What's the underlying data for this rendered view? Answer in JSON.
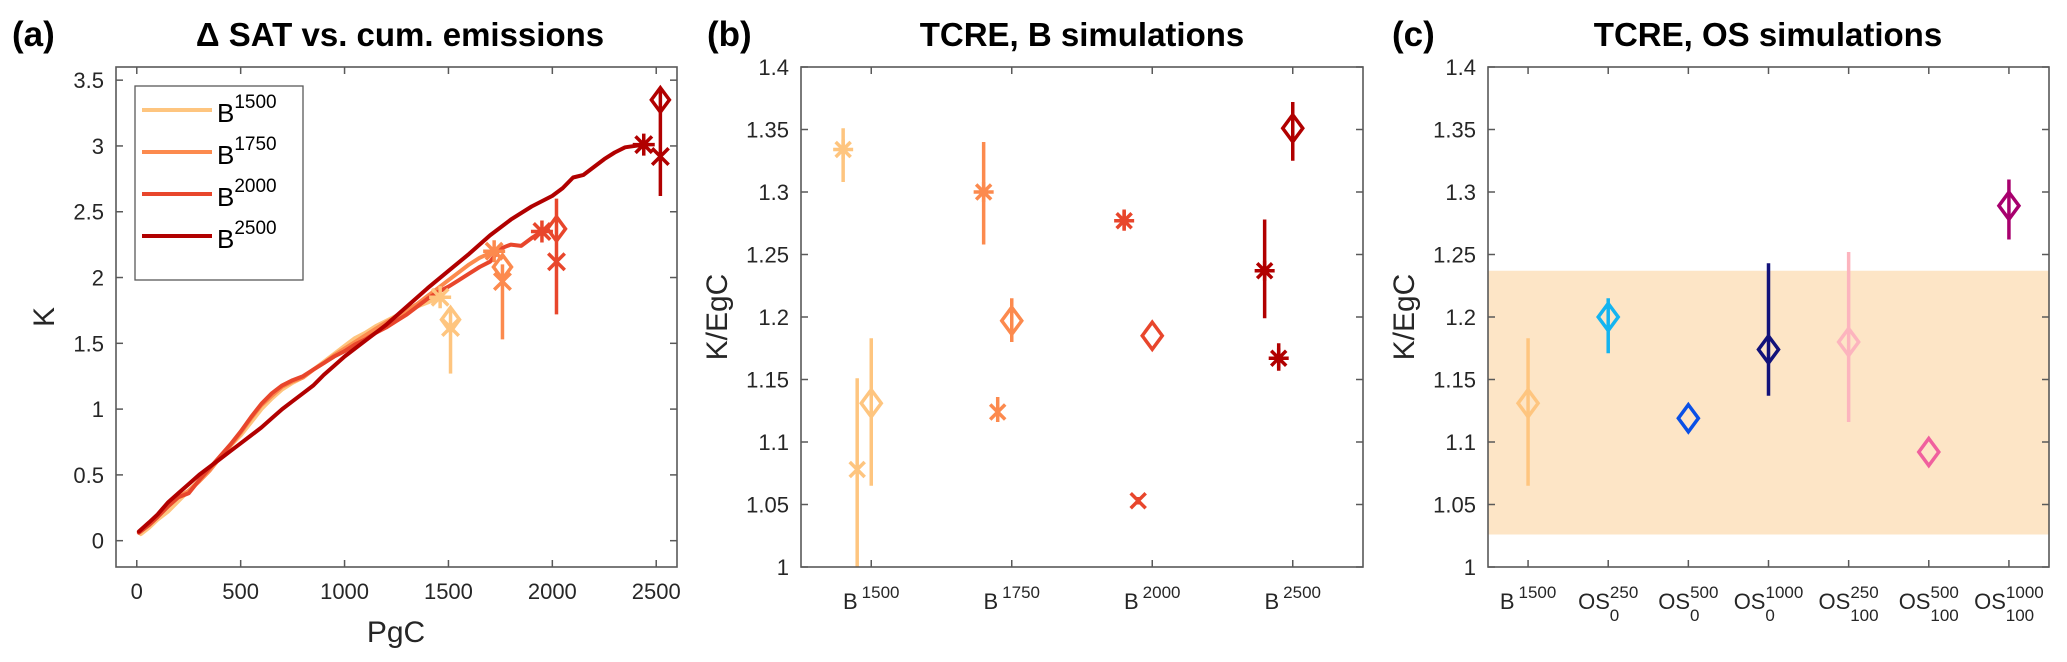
{
  "chart_data": [
    {
      "panel": "(a)",
      "type": "line",
      "title": "Δ SAT vs. cum. emissions",
      "xlabel": "PgC",
      "ylabel": "K",
      "xlim": [
        -100,
        2600
      ],
      "ylim": [
        -0.2,
        3.6
      ],
      "xticks": [
        0,
        500,
        1000,
        1500,
        2000,
        2500
      ],
      "xtick_labels": [
        "0",
        "500",
        "1000",
        "1500",
        "2000",
        "2500"
      ],
      "yticks": [
        0,
        0.5,
        1,
        1.5,
        2,
        2.5,
        3,
        3.5
      ],
      "ytick_labels": [
        "0",
        "0.5",
        "1",
        "1.5",
        "2",
        "2.5",
        "3",
        "3.5"
      ],
      "legend_position": "top-left",
      "series": [
        {
          "name": "B",
          "sup": "1500",
          "color": "#FEC57F",
          "x": [
            20,
            60,
            100,
            150,
            200,
            250,
            300,
            350,
            400,
            450,
            500,
            550,
            600,
            650,
            700,
            750,
            800,
            850,
            900,
            950,
            1000,
            1050,
            1100,
            1150,
            1200,
            1250,
            1300,
            1350,
            1400,
            1460
          ],
          "y": [
            0.05,
            0.1,
            0.16,
            0.22,
            0.3,
            0.38,
            0.46,
            0.54,
            0.63,
            0.72,
            0.8,
            0.9,
            1.0,
            1.08,
            1.15,
            1.2,
            1.24,
            1.3,
            1.36,
            1.42,
            1.48,
            1.54,
            1.58,
            1.63,
            1.67,
            1.71,
            1.75,
            1.78,
            1.81,
            1.85
          ],
          "markers": {
            "asterisk": [
              1460,
              1.85
            ],
            "diamond": [
              1510,
              1.68
            ],
            "cross": [
              1510,
              1.62
            ],
            "errbar": [
              1510,
              1.27,
              1.75
            ]
          }
        },
        {
          "name": "B",
          "sup": "1750",
          "color": "#FC8A4E",
          "x": [
            20,
            60,
            100,
            150,
            200,
            250,
            300,
            350,
            400,
            450,
            500,
            550,
            600,
            650,
            700,
            750,
            800,
            850,
            900,
            950,
            1000,
            1050,
            1100,
            1150,
            1200,
            1250,
            1300,
            1350,
            1400,
            1450,
            1500,
            1550,
            1600,
            1650,
            1720
          ],
          "y": [
            0.08,
            0.13,
            0.19,
            0.26,
            0.33,
            0.38,
            0.45,
            0.53,
            0.63,
            0.72,
            0.82,
            0.93,
            1.03,
            1.1,
            1.17,
            1.21,
            1.24,
            1.3,
            1.35,
            1.41,
            1.46,
            1.51,
            1.56,
            1.61,
            1.66,
            1.7,
            1.75,
            1.8,
            1.86,
            1.92,
            1.98,
            2.04,
            2.1,
            2.15,
            2.2
          ],
          "markers": {
            "asterisk": [
              1720,
              2.2
            ],
            "diamond": [
              1760,
              2.08
            ],
            "cross": [
              1760,
              1.97
            ],
            "errbar": [
              1760,
              1.53,
              2.1
            ]
          }
        },
        {
          "name": "B",
          "sup": "2000",
          "color": "#E8462C",
          "x": [
            10,
            60,
            100,
            150,
            200,
            250,
            300,
            350,
            400,
            450,
            500,
            550,
            600,
            650,
            700,
            750,
            800,
            850,
            900,
            950,
            1000,
            1050,
            1100,
            1150,
            1200,
            1250,
            1300,
            1350,
            1400,
            1450,
            1500,
            1550,
            1600,
            1650,
            1700,
            1750,
            1800,
            1850,
            1900,
            1950
          ],
          "y": [
            0.06,
            0.12,
            0.18,
            0.26,
            0.33,
            0.36,
            0.46,
            0.55,
            0.64,
            0.73,
            0.83,
            0.94,
            1.04,
            1.12,
            1.18,
            1.22,
            1.25,
            1.3,
            1.35,
            1.4,
            1.44,
            1.49,
            1.53,
            1.58,
            1.62,
            1.67,
            1.72,
            1.78,
            1.84,
            1.89,
            1.93,
            1.98,
            2.03,
            2.08,
            2.12,
            2.22,
            2.25,
            2.24,
            2.3,
            2.35
          ],
          "markers": {
            "asterisk": [
              1950,
              2.35
            ],
            "diamond": [
              2020,
              2.37
            ],
            "cross": [
              2020,
              2.12
            ],
            "errbar": [
              2020,
              1.72,
              2.6
            ]
          }
        },
        {
          "name": "B",
          "sup": "2500",
          "color": "#B10000",
          "x": [
            10,
            60,
            100,
            150,
            200,
            250,
            300,
            350,
            400,
            450,
            500,
            550,
            600,
            650,
            700,
            750,
            800,
            850,
            900,
            950,
            1000,
            1100,
            1200,
            1300,
            1400,
            1500,
            1600,
            1700,
            1800,
            1900,
            2000,
            2050,
            2100,
            2150,
            2200,
            2250,
            2300,
            2350,
            2440
          ],
          "y": [
            0.07,
            0.14,
            0.2,
            0.29,
            0.36,
            0.43,
            0.5,
            0.56,
            0.62,
            0.68,
            0.74,
            0.8,
            0.86,
            0.93,
            1.0,
            1.06,
            1.12,
            1.18,
            1.26,
            1.33,
            1.4,
            1.52,
            1.64,
            1.78,
            1.92,
            2.05,
            2.18,
            2.32,
            2.44,
            2.54,
            2.62,
            2.68,
            2.76,
            2.78,
            2.84,
            2.9,
            2.95,
            2.99,
            3.01
          ],
          "markers": {
            "asterisk": [
              2440,
              3.01
            ],
            "diamond": [
              2520,
              3.35
            ],
            "cross": [
              2520,
              2.92
            ],
            "errbar": [
              2520,
              2.62,
              3.42
            ]
          }
        }
      ]
    },
    {
      "panel": "(b)",
      "type": "scatter",
      "title": "TCRE, B simulations",
      "xlabel": "",
      "ylabel": "K/EgC",
      "ylim": [
        1.0,
        1.4
      ],
      "yticks": [
        1,
        1.05,
        1.1,
        1.15,
        1.2,
        1.25,
        1.3,
        1.35,
        1.4
      ],
      "ytick_labels": [
        "1",
        "1.05",
        "1.1",
        "1.15",
        "1.2",
        "1.25",
        "1.3",
        "1.35",
        "1.4"
      ],
      "categories": [
        {
          "base": "B",
          "sup": "1500"
        },
        {
          "base": "B",
          "sup": "1750"
        },
        {
          "base": "B",
          "sup": "2000"
        },
        {
          "base": "B",
          "sup": "2500"
        }
      ],
      "points": [
        {
          "cat": 1,
          "offset": -0.2,
          "marker": "asterisk",
          "value": 1.334,
          "err": [
            1.308,
            1.351
          ],
          "color": "#FEC57F"
        },
        {
          "cat": 1,
          "offset": -0.1,
          "marker": "cross",
          "value": 1.078,
          "err": [
            1.0,
            1.151
          ],
          "color": "#FEC57F"
        },
        {
          "cat": 1,
          "offset": 0.0,
          "marker": "diamond",
          "value": 1.131,
          "err": [
            1.065,
            1.183
          ],
          "color": "#FEC57F"
        },
        {
          "cat": 2,
          "offset": -0.2,
          "marker": "asterisk",
          "value": 1.3,
          "err": [
            1.258,
            1.34
          ],
          "color": "#FC8A4E"
        },
        {
          "cat": 2,
          "offset": -0.1,
          "marker": "cross",
          "value": 1.124,
          "err": [
            1.116,
            1.136
          ],
          "color": "#FC8A4E"
        },
        {
          "cat": 2,
          "offset": 0.0,
          "marker": "diamond",
          "value": 1.197,
          "err": [
            1.18,
            1.215
          ],
          "color": "#FC8A4E"
        },
        {
          "cat": 3,
          "offset": -0.2,
          "marker": "asterisk",
          "value": 1.277,
          "err": [
            1.27,
            1.286
          ],
          "color": "#E8462C"
        },
        {
          "cat": 3,
          "offset": -0.1,
          "marker": "cross",
          "value": 1.053,
          "err": [
            1.05,
            1.056
          ],
          "color": "#E8462C"
        },
        {
          "cat": 3,
          "offset": 0.0,
          "marker": "diamond",
          "value": 1.185,
          "err": [
            1.185,
            1.185
          ],
          "color": "#E8462C"
        },
        {
          "cat": 4,
          "offset": -0.2,
          "marker": "asterisk",
          "value": 1.237,
          "err": [
            1.199,
            1.278
          ],
          "color": "#B10000"
        },
        {
          "cat": 4,
          "offset": -0.1,
          "marker": "asterisk",
          "value": 1.167,
          "err": [
            1.157,
            1.179
          ],
          "color": "#B10000"
        },
        {
          "cat": 4,
          "offset": 0.0,
          "marker": "diamond",
          "value": 1.351,
          "err": [
            1.325,
            1.372
          ],
          "color": "#B10000"
        }
      ]
    },
    {
      "panel": "(c)",
      "type": "scatter",
      "title": "TCRE, OS simulations",
      "xlabel": "",
      "ylabel": "K/EgC",
      "ylim": [
        1.0,
        1.4
      ],
      "yticks": [
        1,
        1.05,
        1.1,
        1.15,
        1.2,
        1.25,
        1.3,
        1.35,
        1.4
      ],
      "ytick_labels": [
        "1",
        "1.05",
        "1.1",
        "1.15",
        "1.2",
        "1.25",
        "1.3",
        "1.35",
        "1.4"
      ],
      "band": {
        "ymin": 1.026,
        "ymax": 1.237,
        "color": "#FDE5C6"
      },
      "categories": [
        {
          "base": "B",
          "sup": "1500",
          "sub": ""
        },
        {
          "base": "OS",
          "sup": "250",
          "sub": "0"
        },
        {
          "base": "OS",
          "sup": "500",
          "sub": "0"
        },
        {
          "base": "OS",
          "sup": "1000",
          "sub": "0"
        },
        {
          "base": "OS",
          "sup": "250",
          "sub": "100"
        },
        {
          "base": "OS",
          "sup": "500",
          "sub": "100"
        },
        {
          "base": "OS",
          "sup": "1000",
          "sub": "100"
        }
      ],
      "points": [
        {
          "cat": 1,
          "marker": "diamond",
          "value": 1.131,
          "err": [
            1.065,
            1.183
          ],
          "color": "#FEC57F"
        },
        {
          "cat": 2,
          "marker": "diamond",
          "value": 1.2,
          "err": [
            1.171,
            1.215
          ],
          "color": "#14B4F0"
        },
        {
          "cat": 3,
          "marker": "diamond",
          "value": 1.119,
          "err": [
            1.119,
            1.119
          ],
          "color": "#0A50E6"
        },
        {
          "cat": 4,
          "marker": "diamond",
          "value": 1.174,
          "err": [
            1.137,
            1.243
          ],
          "color": "#12127A"
        },
        {
          "cat": 5,
          "marker": "diamond",
          "value": 1.18,
          "err": [
            1.116,
            1.252
          ],
          "color": "#FCB4BE"
        },
        {
          "cat": 6,
          "marker": "diamond",
          "value": 1.092,
          "err": [
            1.092,
            1.092
          ],
          "color": "#F0609E"
        },
        {
          "cat": 7,
          "marker": "diamond",
          "value": 1.289,
          "err": [
            1.262,
            1.31
          ],
          "color": "#A8006E"
        }
      ]
    }
  ]
}
